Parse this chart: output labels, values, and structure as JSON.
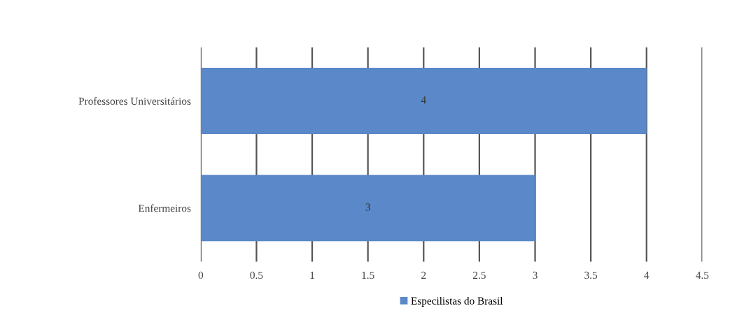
{
  "chart_data": {
    "type": "bar",
    "orientation": "horizontal",
    "categories": [
      "Professores Universitários",
      "Enfermeiros"
    ],
    "series": [
      {
        "name": "Especilistas do Brasil",
        "color": "#5a88c8",
        "values": [
          4,
          3
        ]
      }
    ],
    "xlim": [
      0,
      4.5
    ],
    "xticks": [
      0,
      0.5,
      1,
      1.5,
      2,
      2.5,
      3,
      3.5,
      4,
      4.5
    ],
    "grid": "x",
    "legend": "bottom",
    "data_labels": true
  }
}
